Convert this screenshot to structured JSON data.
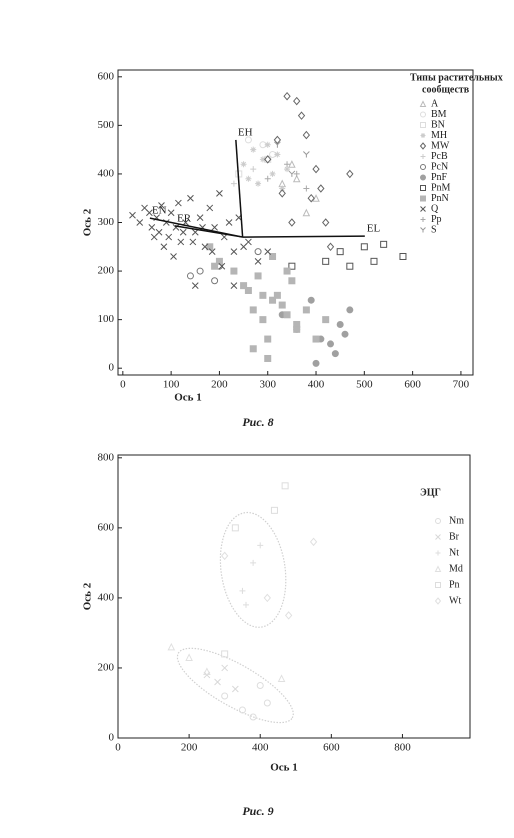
{
  "charts": [
    {
      "chart_data": {
        "type": "scatter",
        "caption": "Рис. 8",
        "x_label": "Ось 1",
        "y_label": "Ось 2",
        "legend_title": [
          "Типы растительных",
          "сообществ"
        ],
        "xlim": [
          -10,
          725
        ],
        "ylim": [
          -14,
          614
        ],
        "xticks": [
          0,
          100,
          200,
          300,
          400,
          500,
          600,
          700
        ],
        "yticks": [
          0,
          100,
          200,
          300,
          400,
          500,
          600
        ],
        "series": [
          {
            "name": "A",
            "marker": "triangle",
            "color": "#bbbbbb",
            "x": [
              330,
              360,
              380,
              400,
              350
            ],
            "y": [
              380,
              390,
              320,
              350,
              420
            ]
          },
          {
            "name": "BM",
            "marker": "circle",
            "color": "#dddddd",
            "x": [
              260,
              290,
              310
            ],
            "y": [
              470,
              460,
              440
            ]
          },
          {
            "name": "BN",
            "marker": "square",
            "color": "#dddddd",
            "x": [
              240,
              300
            ],
            "y": [
              400,
              430
            ]
          },
          {
            "name": "MH",
            "marker": "star",
            "color": "#cccccc",
            "x": [
              250,
              270,
              280,
              290,
              300,
              310,
              320,
              330,
              340,
              260
            ],
            "y": [
              420,
              450,
              380,
              430,
              460,
              400,
              440,
              370,
              410,
              390
            ]
          },
          {
            "name": "MW",
            "marker": "diamond",
            "color": "#666666",
            "x": [
              300,
              320,
              340,
              360,
              370,
              380,
              390,
              400,
              410,
              420,
              430,
              470,
              350,
              330
            ],
            "y": [
              430,
              470,
              560,
              550,
              520,
              480,
              350,
              410,
              370,
              300,
              250,
              400,
              300,
              360
            ]
          },
          {
            "name": "PcB",
            "marker": "plus",
            "color": "#cccccc",
            "x": [
              230,
              270
            ],
            "y": [
              380,
              410
            ]
          },
          {
            "name": "PcN",
            "marker": "circle",
            "color": "#777777",
            "x": [
              140,
              160,
              190,
              200,
              280
            ],
            "y": [
              190,
              200,
              180,
              210,
              240
            ]
          },
          {
            "name": "PnF",
            "marker": "filled-circle",
            "color": "#a0a0a0",
            "x": [
              330,
              360,
              390,
              410,
              430,
              450,
              470,
              440,
              400,
              460
            ],
            "y": [
              110,
              80,
              140,
              60,
              50,
              90,
              120,
              30,
              10,
              70
            ]
          },
          {
            "name": "PnM",
            "marker": "square",
            "color": "#555555",
            "x": [
              420,
              450,
              470,
              500,
              520,
              540,
              580,
              350
            ],
            "y": [
              220,
              240,
              210,
              250,
              220,
              255,
              230,
              210
            ]
          },
          {
            "name": "PnN",
            "marker": "filled-square",
            "color": "#b5b5b5",
            "x": [
              180,
              200,
              230,
              260,
              270,
              290,
              300,
              310,
              320,
              340,
              350,
              360,
              380,
              400,
              420,
              270,
              300,
              330,
              250,
              190,
              280,
              310,
              340,
              360,
              290
            ],
            "y": [
              250,
              220,
              200,
              160,
              120,
              100,
              60,
              140,
              150,
              110,
              180,
              90,
              120,
              60,
              100,
              40,
              20,
              130,
              170,
              210,
              190,
              230,
              200,
              80,
              150
            ]
          },
          {
            "name": "Q",
            "marker": "cross",
            "color": "#555555",
            "x": [
              20,
              35,
              45,
              55,
              60,
              70,
              75,
              80,
              90,
              95,
              100,
              110,
              115,
              120,
              130,
              140,
              150,
              160,
              170,
              180,
              190,
              200,
              210,
              220,
              230,
              240,
              250,
              260,
              280,
              300,
              65,
              85,
              105,
              125,
              145,
              165,
              185,
              205,
              150,
              230
            ],
            "y": [
              315,
              300,
              330,
              320,
              290,
              310,
              280,
              335,
              300,
              270,
              320,
              290,
              340,
              260,
              300,
              350,
              280,
              310,
              250,
              330,
              290,
              360,
              270,
              300,
              240,
              310,
              250,
              260,
              220,
              240,
              270,
              250,
              230,
              280,
              260,
              290,
              240,
              210,
              170,
              170
            ]
          },
          {
            "name": "Pp",
            "marker": "plus",
            "color": "#aaaaaa",
            "x": [
              340,
              360,
              380,
              300
            ],
            "y": [
              420,
              400,
              370,
              390
            ]
          },
          {
            "name": "S",
            "marker": "tri-down",
            "color": "#999999",
            "x": [
              320,
              350,
              380
            ],
            "y": [
              460,
              400,
              440
            ]
          }
        ],
        "vector_origin": [
          248,
          270
        ],
        "vectors": [
          {
            "label": "EN",
            "x": 56,
            "y": 309
          },
          {
            "label": "ER",
            "x": 108,
            "y": 293
          },
          {
            "label": "EH",
            "x": 234,
            "y": 470
          },
          {
            "label": "EL",
            "x": 501,
            "y": 272
          }
        ]
      }
    },
    {
      "chart_data": {
        "type": "scatter",
        "caption": "Рис. 9",
        "x_label": "Ось 1",
        "y_label": "Ось 2",
        "legend_title": [
          "ЭЦГ"
        ],
        "xlim": [
          0,
          990
        ],
        "ylim": [
          0,
          808
        ],
        "xticks": [
          0,
          200,
          400,
          600,
          800
        ],
        "yticks": [
          0,
          200,
          400,
          600,
          800
        ],
        "series": [
          {
            "name": "Nm",
            "marker": "circle",
            "color": "#dddddd",
            "x": [
              300,
              350,
              400,
              380,
              420
            ],
            "y": [
              120,
              80,
              150,
              60,
              100
            ]
          },
          {
            "name": "Br",
            "marker": "cross",
            "color": "#d8d8d8",
            "x": [
              250,
              300,
              330,
              280
            ],
            "y": [
              180,
              200,
              140,
              160
            ]
          },
          {
            "name": "Nt",
            "marker": "plus",
            "color": "#dddddd",
            "x": [
              350,
              380,
              400,
              360
            ],
            "y": [
              420,
              500,
              550,
              380
            ]
          },
          {
            "name": "Md",
            "marker": "triangle",
            "color": "#e0e0e0",
            "x": [
              150,
              200,
              250,
              460
            ],
            "y": [
              260,
              230,
              190,
              170
            ]
          },
          {
            "name": "Pn",
            "marker": "square",
            "color": "#dddddd",
            "x": [
              440,
              470,
              330,
              300
            ],
            "y": [
              650,
              720,
              600,
              240
            ]
          },
          {
            "name": "Wt",
            "marker": "diamond",
            "color": "#e0e0e0",
            "x": [
              300,
              420,
              480,
              550
            ],
            "y": [
              520,
              400,
              350,
              560
            ]
          }
        ],
        "ellipses": [
          {
            "cx": 380,
            "cy": 480,
            "rx": 90,
            "ry": 165,
            "angle": 8
          },
          {
            "cx": 330,
            "cy": 150,
            "rx": 185,
            "ry": 60,
            "angle": -30
          }
        ]
      }
    }
  ]
}
